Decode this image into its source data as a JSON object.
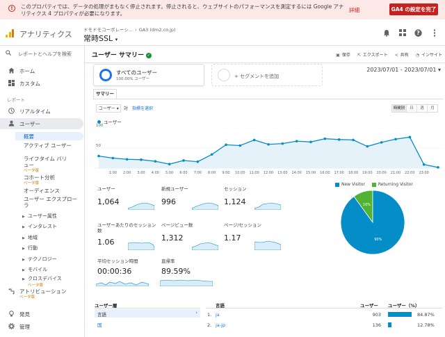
{
  "alert": {
    "text": "このプロパティでは、データの処理がまもなく停止されます。停止されると、ウェブサイトのパフォーマンスを測定するには Google アナリティクス 4 プロパティが必要になります。",
    "detail_label": "詳細",
    "button_label": "GA4 の設定を完了",
    "accent": "#c5221f"
  },
  "header": {
    "app_name": "アナリティクス",
    "breadcrumb_account": "ドモドモコーポレーシ...",
    "breadcrumb_property": "GA3 (dm2.co.jp)",
    "property_name": "常時SSL",
    "icons": [
      "bell-icon",
      "apps-icon",
      "help-icon",
      "more-icon"
    ]
  },
  "sidebar": {
    "search_placeholder": "レポートとヘルプを検索",
    "home": "ホーム",
    "custom": "カスタム",
    "reports_section": "レポート",
    "realtime": "リアルタイム",
    "audience": "ユーザー",
    "sub_items": [
      {
        "label": "概要",
        "active": true
      },
      {
        "label": "アクティブ ユーザー"
      },
      {
        "label": "ライフタイム バリュー",
        "beta": "ベータ版"
      },
      {
        "label": "コホート分析",
        "beta": "ベータ版"
      },
      {
        "label": "オーディエンス"
      },
      {
        "label": "ユーザー エクスプローラ"
      }
    ],
    "expandables": [
      "ユーザー属性",
      "インタレスト",
      "地域",
      "行動",
      "テクノロジー",
      "モバイル",
      "クロスデバイス"
    ],
    "crossdevice_beta": "ベータ版",
    "attribution": "アトリビューション",
    "attribution_beta": "ベータ版",
    "discover": "発見",
    "admin": "管理"
  },
  "main": {
    "title": "ユーザー サマリー",
    "actions": {
      "save": "保存",
      "export": "エクスポート",
      "share": "共有",
      "insights": "インサイト"
    },
    "segment": {
      "name": "すべてのユーザー",
      "sub": "100.00% ユーザー"
    },
    "add_segment": "+ セグメントを追加",
    "date_range": "2023/07/01 - 2023/07/01",
    "tab_summary": "サマリー",
    "metric_select": "ユーザー",
    "vs_label": "対",
    "pick_metric": "指標を選択",
    "time_tabs": [
      "時間別",
      "日",
      "週",
      "月"
    ]
  },
  "chart_data": {
    "type": "line",
    "series": [
      {
        "name": "ユーザー",
        "values": [
          30,
          25,
          22,
          21,
          17,
          10,
          19,
          16,
          34,
          58,
          56,
          70,
          59,
          61,
          67,
          65,
          73,
          71,
          70,
          54,
          64,
          72,
          77,
          9,
          2
        ]
      }
    ],
    "x": [
      "",
      "1:00",
      "2:00",
      "3:00",
      "4:00",
      "5:00",
      "6:00",
      "7:00",
      "8:00",
      "9:00",
      "10:00",
      "11:00",
      "12:00",
      "13:00",
      "14:00",
      "15:00",
      "16:00",
      "17:00",
      "18:00",
      "19:00",
      "20:00",
      "21:00",
      "22:00",
      "23:00",
      ""
    ],
    "y_ticks": [
      "100",
      "50"
    ],
    "ylim": [
      0,
      100
    ],
    "color": "#058dc7"
  },
  "scorecards": [
    {
      "label": "ユーザー",
      "value": "1,064"
    },
    {
      "label": "新規ユーザー",
      "value": "996"
    },
    {
      "label": "セッション",
      "value": "1,124"
    },
    {
      "label": "ユーザーあたりのセッション数",
      "value": "1.06"
    },
    {
      "label": "ページビュー数",
      "value": "1,312"
    },
    {
      "label": "ページ/セッション",
      "value": "1.17"
    },
    {
      "label": "平均セッション時間",
      "value": "00:00:36"
    },
    {
      "label": "直帰率",
      "value": "89.59%"
    }
  ],
  "pie": {
    "legend": [
      {
        "name": "New Visitor",
        "color": "#058dc7"
      },
      {
        "name": "Returning Visitor",
        "color": "#50b432"
      }
    ],
    "values": [
      90,
      10
    ],
    "labels": [
      "90%",
      "10%"
    ]
  },
  "table": {
    "left_header": "ユーザー層",
    "selected_row": "言語",
    "other_row": "国",
    "right_header_col1": "言語",
    "right_header_col2": "ユーザー",
    "right_header_col3": "ユーザー（%）",
    "rows": [
      {
        "n": "1.",
        "label": "ja",
        "users": "903",
        "pct": "84.87%",
        "fraction": 0.8487
      },
      {
        "n": "2.",
        "label": "ja-jp",
        "users": "136",
        "pct": "12.78%",
        "fraction": 0.1278
      }
    ]
  }
}
